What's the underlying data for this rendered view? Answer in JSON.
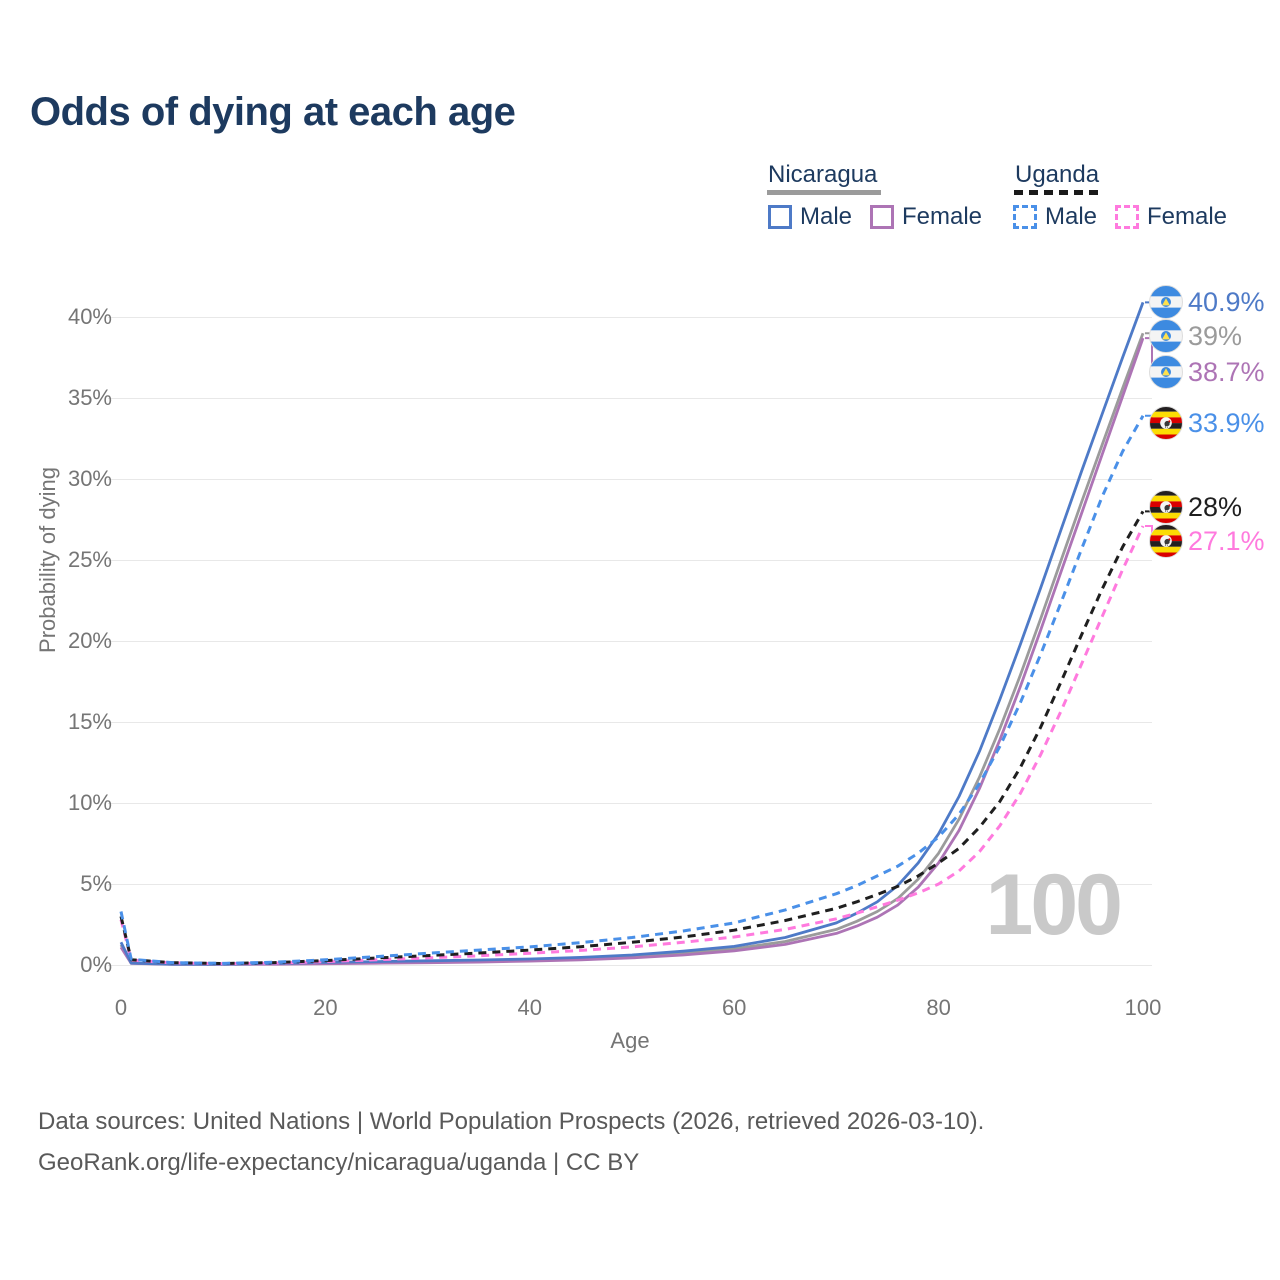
{
  "title": "Odds of dying at each age",
  "legend": {
    "nicaragua": {
      "label": "Nicaragua",
      "male_label": "Male",
      "female_label": "Female",
      "underline_color": "#9b9b9b"
    },
    "uganda": {
      "label": "Uganda",
      "male_label": "Male",
      "female_label": "Female",
      "underline_color": "#1a1a1a"
    }
  },
  "watermark": "100",
  "axes": {
    "y_title": "Probability of dying",
    "y_ticks": [
      {
        "label": "40%",
        "value": 40
      },
      {
        "label": "35%",
        "value": 35
      },
      {
        "label": "30%",
        "value": 30
      },
      {
        "label": "25%",
        "value": 25
      },
      {
        "label": "20%",
        "value": 20
      },
      {
        "label": "15%",
        "value": 15
      },
      {
        "label": "10%",
        "value": 10
      },
      {
        "label": "5%",
        "value": 5
      },
      {
        "label": "0%",
        "value": 0
      }
    ],
    "x_title": "Age",
    "x_ticks": [
      {
        "label": "0",
        "value": 0
      },
      {
        "label": "20",
        "value": 20
      },
      {
        "label": "40",
        "value": 40
      },
      {
        "label": "60",
        "value": 60
      },
      {
        "label": "80",
        "value": 80
      },
      {
        "label": "100",
        "value": 100
      }
    ]
  },
  "chart_data": {
    "type": "line",
    "title": "Odds of dying at each age",
    "xlabel": "Age",
    "ylabel": "Probability of dying",
    "xlim": [
      0,
      100
    ],
    "ylim": [
      0,
      42
    ],
    "legend_position": "top-right",
    "grid": "horizontal",
    "x": [
      0,
      1,
      5,
      10,
      15,
      20,
      25,
      30,
      35,
      40,
      45,
      50,
      55,
      60,
      65,
      70,
      72,
      74,
      76,
      78,
      80,
      82,
      84,
      86,
      88,
      90,
      92,
      94,
      96,
      98,
      100
    ],
    "series": [
      {
        "name": "Nicaragua Male",
        "country": "Nicaragua",
        "sex": "Male",
        "color": "#4e7ac7",
        "dashed": false,
        "flag": "nicaragua",
        "end_label": "40.9%",
        "end_value": 40.9,
        "values": [
          1.4,
          0.12,
          0.05,
          0.05,
          0.09,
          0.16,
          0.21,
          0.26,
          0.31,
          0.37,
          0.47,
          0.62,
          0.85,
          1.15,
          1.7,
          2.6,
          3.2,
          3.9,
          4.9,
          6.3,
          8.1,
          10.4,
          13.2,
          16.4,
          19.8,
          23.3,
          26.9,
          30.5,
          34.0,
          37.5,
          40.9
        ]
      },
      {
        "name": "Nicaragua",
        "country": "Nicaragua",
        "sex": "Both",
        "color": "#9b9b9b",
        "dashed": false,
        "flag": "nicaragua",
        "end_label": "39%",
        "end_value": 39,
        "values": [
          1.25,
          0.11,
          0.05,
          0.04,
          0.07,
          0.12,
          0.16,
          0.2,
          0.24,
          0.3,
          0.39,
          0.52,
          0.72,
          1.0,
          1.45,
          2.2,
          2.7,
          3.3,
          4.1,
          5.3,
          6.9,
          9.0,
          11.6,
          14.6,
          17.9,
          21.4,
          25.0,
          28.6,
          32.1,
          35.6,
          39.0
        ]
      },
      {
        "name": "Nicaragua Female",
        "country": "Nicaragua",
        "sex": "Female",
        "color": "#ad74b5",
        "dashed": false,
        "flag": "nicaragua",
        "end_label": "38.7%",
        "end_value": 38.7,
        "values": [
          1.1,
          0.1,
          0.04,
          0.035,
          0.05,
          0.08,
          0.11,
          0.14,
          0.18,
          0.24,
          0.32,
          0.44,
          0.62,
          0.87,
          1.27,
          1.95,
          2.4,
          2.95,
          3.7,
          4.8,
          6.3,
          8.3,
          10.9,
          13.9,
          17.2,
          20.7,
          24.3,
          27.9,
          31.5,
          35.1,
          38.7
        ]
      },
      {
        "name": "Uganda Male",
        "country": "Uganda",
        "sex": "Male",
        "color": "#4a90e8",
        "dashed": true,
        "flag": "uganda",
        "end_label": "33.9%",
        "end_value": 33.9,
        "values": [
          3.3,
          0.35,
          0.15,
          0.1,
          0.17,
          0.32,
          0.52,
          0.72,
          0.92,
          1.12,
          1.38,
          1.7,
          2.1,
          2.6,
          3.4,
          4.4,
          4.9,
          5.5,
          6.1,
          6.9,
          7.9,
          9.3,
          11.2,
          13.5,
          16.2,
          19.2,
          22.4,
          25.7,
          28.9,
          31.7,
          33.9
        ]
      },
      {
        "name": "Uganda",
        "country": "Uganda",
        "sex": "Both",
        "color": "#1f1f1f",
        "dashed": true,
        "flag": "uganda",
        "end_label": "28%",
        "end_value": 28,
        "values": [
          3.0,
          0.33,
          0.14,
          0.09,
          0.15,
          0.27,
          0.43,
          0.58,
          0.74,
          0.92,
          1.13,
          1.4,
          1.73,
          2.15,
          2.75,
          3.5,
          3.9,
          4.35,
          4.85,
          5.5,
          6.3,
          7.2,
          8.5,
          10.1,
          12.2,
          14.7,
          17.5,
          20.4,
          23.2,
          25.8,
          28.0
        ]
      },
      {
        "name": "Uganda Female",
        "country": "Uganda",
        "sex": "Female",
        "color": "#ff7ade",
        "dashed": true,
        "flag": "uganda",
        "end_label": "27.1%",
        "end_value": 27.1,
        "values": [
          2.8,
          0.3,
          0.13,
          0.08,
          0.12,
          0.21,
          0.32,
          0.44,
          0.57,
          0.72,
          0.9,
          1.12,
          1.4,
          1.73,
          2.2,
          2.85,
          3.2,
          3.6,
          4.0,
          4.45,
          5.0,
          5.8,
          7.0,
          8.6,
          10.6,
          13.0,
          15.7,
          18.6,
          21.5,
          24.4,
          27.1
        ]
      }
    ]
  },
  "footer": {
    "line1": "Data sources: United Nations | World Population Prospects (2026, retrieved 2026-03-10).",
    "line2": "GeoRank.org/life-expectancy/nicaragua/uganda | CC BY"
  }
}
